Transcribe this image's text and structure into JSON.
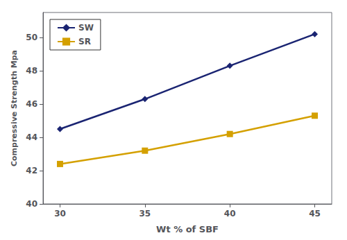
{
  "chart_data": {
    "type": "line",
    "x": [
      30,
      35,
      40,
      45
    ],
    "series": [
      {
        "name": "SW",
        "color": "#1a2472",
        "values": [
          44.5,
          46.3,
          48.3,
          50.2
        ],
        "marker": "diamond"
      },
      {
        "name": "SR",
        "color": "#d4a000",
        "values": [
          42.4,
          43.2,
          44.2,
          45.3
        ],
        "marker": "square"
      }
    ],
    "xlabel": "Wt % of SBF",
    "ylabel": "Compressive Strength Mpa",
    "xlim": [
      29.0,
      46.0
    ],
    "ylim": [
      40,
      51.5
    ],
    "xticks": [
      30,
      35,
      40,
      45
    ],
    "yticks": [
      40,
      42,
      44,
      46,
      48,
      50
    ],
    "grid": false,
    "legend": "upper left"
  }
}
